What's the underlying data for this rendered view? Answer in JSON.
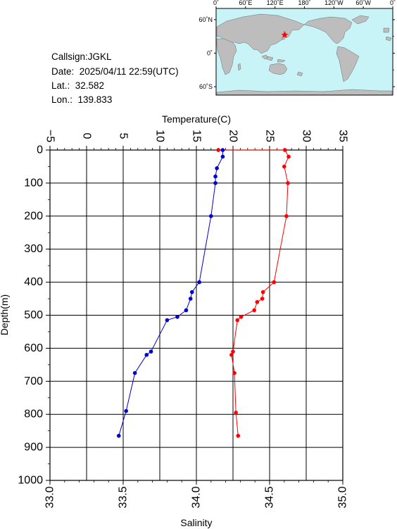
{
  "station": {
    "callsign_text": "Callsign:JGKL",
    "date_text": "Date:  2025/04/11 22:59(UTC)",
    "lat_text": "Lat.:  32.582",
    "lon_text": "Lon.:  139.833"
  },
  "map": {
    "lon_ticks": [
      "0˚",
      "60˚E",
      "120˚E",
      "180˚",
      "120˚W",
      "60˚W",
      "0˚"
    ],
    "lat_ticks": [
      "60˚N",
      "0˚",
      "60˚S"
    ],
    "ocean_color": "#c8f4f8",
    "land_color": "#bdbdbd",
    "station_marker_color": "#ff0000",
    "station_lon": 139.833,
    "station_lat": 32.582
  },
  "chart_data": {
    "type": "line",
    "xlabel_top": "Temperature(C)",
    "xlabel_bottom": "Salinity",
    "ylabel": "Depth(m)",
    "temperature_ticks": [
      "−5",
      "0",
      "5",
      "10",
      "15",
      "20",
      "25",
      "30",
      "35"
    ],
    "temperature_range": [
      -5,
      35
    ],
    "salinity_ticks": [
      "33.0",
      "33.5",
      "34.0",
      "34.5",
      "35.0"
    ],
    "salinity_range": [
      33.0,
      35.0
    ],
    "depth_ticks": [
      "0",
      "100",
      "200",
      "300",
      "400",
      "500",
      "600",
      "700",
      "800",
      "900",
      "1000"
    ],
    "depth_range": [
      0,
      1000
    ],
    "grid": true,
    "series": [
      {
        "axis": "temperature",
        "color": "#ff0000",
        "depth": [
          0,
          0,
          20,
          50,
          100,
          200,
          400,
          430,
          450,
          460,
          485,
          505,
          515,
          610,
          620,
          675,
          795,
          865
        ],
        "values": [
          18.0,
          27.1,
          27.6,
          27.0,
          27.5,
          27.3,
          25.6,
          24.1,
          24.0,
          23.3,
          22.9,
          21.1,
          20.6,
          20.0,
          19.8,
          20.2,
          20.4,
          20.7
        ]
      },
      {
        "axis": "salinity",
        "color": "#0000cc",
        "depth": [
          0,
          20,
          55,
          80,
          100,
          200,
          400,
          430,
          450,
          485,
          505,
          515,
          610,
          620,
          675,
          790,
          865
        ],
        "values": [
          34.18,
          34.18,
          34.14,
          34.13,
          34.13,
          34.1,
          34.02,
          33.97,
          33.96,
          33.93,
          33.87,
          33.8,
          33.69,
          33.66,
          33.58,
          33.52,
          33.47
        ]
      }
    ]
  }
}
